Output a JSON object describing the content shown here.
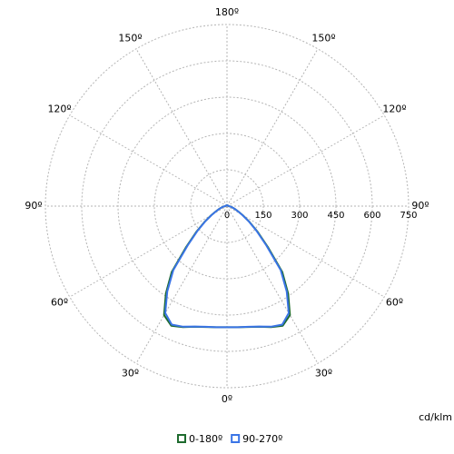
{
  "chart_data": {
    "type": "polar",
    "x": [
      0,
      5,
      10,
      15,
      20,
      25,
      30,
      35,
      40,
      45,
      50,
      55,
      60,
      65,
      70,
      75,
      80,
      85,
      90,
      100,
      110,
      120,
      130,
      140,
      150,
      160,
      170,
      180
    ],
    "series": [
      {
        "name": "0-180º",
        "color": "#1e6b2e",
        "values": [
          500,
          502,
          507,
          516,
          532,
          545,
          520,
          440,
          355,
          238,
          165,
          112,
          75,
          50,
          35,
          25,
          18,
          12,
          8,
          6,
          5,
          5,
          4,
          4,
          4,
          3,
          3,
          3
        ]
      },
      {
        "name": "90-270º",
        "color": "#3a74e6",
        "values": [
          500,
          502,
          506,
          515,
          530,
          540,
          510,
          430,
          345,
          230,
          160,
          110,
          73,
          49,
          34,
          24,
          17,
          12,
          8,
          6,
          5,
          5,
          4,
          4,
          4,
          3,
          3,
          3
        ]
      }
    ],
    "rlim": [
      0,
      750
    ],
    "rticks": [
      0,
      150,
      300,
      450,
      600,
      750
    ],
    "thetaticks": [
      {
        "value": 0,
        "label": "0º"
      },
      {
        "value": 30,
        "label": "30º"
      },
      {
        "value": 60,
        "label": "60º"
      },
      {
        "value": 90,
        "label": "90º"
      },
      {
        "value": 120,
        "label": "120º"
      },
      {
        "value": 150,
        "label": "150º"
      },
      {
        "value": 180,
        "label": "180º"
      },
      {
        "value": -150,
        "label": "150º"
      },
      {
        "value": -120,
        "label": "120º"
      },
      {
        "value": -90,
        "label": "90º"
      },
      {
        "value": -60,
        "label": "60º"
      },
      {
        "value": -30,
        "label": "30º"
      }
    ],
    "unit_label": "cd/klm",
    "grid": true
  }
}
